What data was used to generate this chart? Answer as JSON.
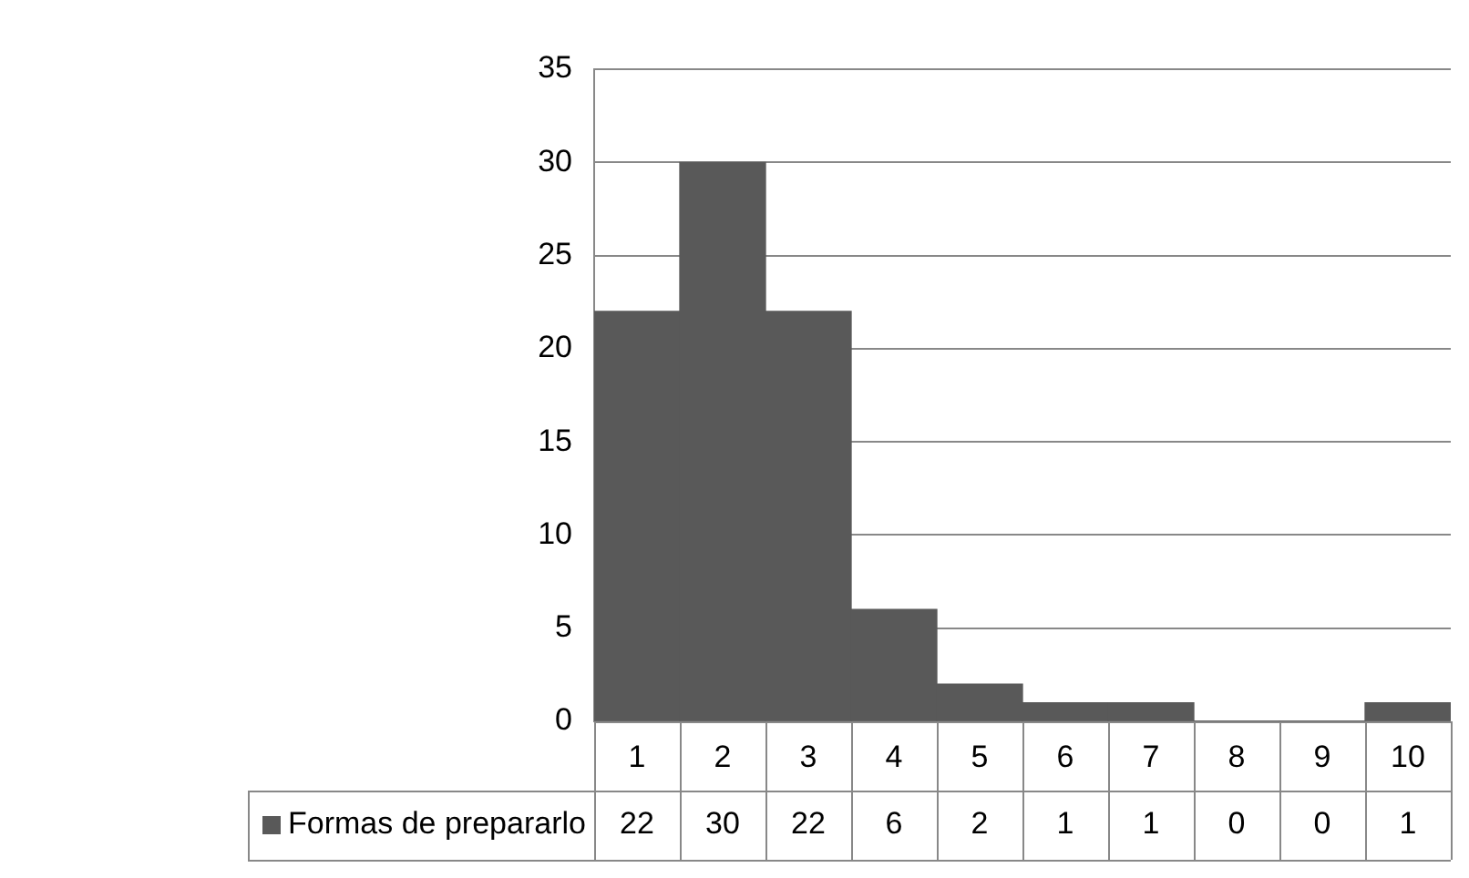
{
  "chart_data": {
    "type": "bar",
    "categories": [
      "1",
      "2",
      "3",
      "4",
      "5",
      "6",
      "7",
      "8",
      "9",
      "10"
    ],
    "series": [
      {
        "name": "Formas de prepararlo",
        "color": "#595959",
        "values": [
          22,
          30,
          22,
          6,
          2,
          1,
          1,
          0,
          0,
          1
        ]
      }
    ],
    "ylim": [
      0,
      35
    ],
    "yticks": [
      0,
      5,
      10,
      15,
      20,
      25,
      30,
      35
    ],
    "grid": "y",
    "data_labels": true
  }
}
